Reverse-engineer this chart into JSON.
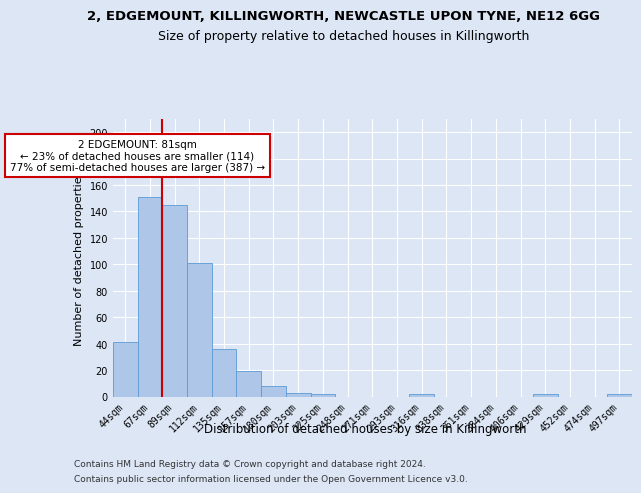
{
  "title1": "2, EDGEMOUNT, KILLINGWORTH, NEWCASTLE UPON TYNE, NE12 6GG",
  "title2": "Size of property relative to detached houses in Killingworth",
  "xlabel": "Distribution of detached houses by size in Killingworth",
  "ylabel": "Number of detached properties",
  "categories": [
    "44sqm",
    "67sqm",
    "89sqm",
    "112sqm",
    "135sqm",
    "157sqm",
    "180sqm",
    "203sqm",
    "225sqm",
    "248sqm",
    "271sqm",
    "293sqm",
    "316sqm",
    "338sqm",
    "361sqm",
    "384sqm",
    "406sqm",
    "429sqm",
    "452sqm",
    "474sqm",
    "497sqm"
  ],
  "values": [
    41,
    151,
    145,
    101,
    36,
    19,
    8,
    3,
    2,
    0,
    0,
    0,
    2,
    0,
    0,
    0,
    0,
    2,
    0,
    0,
    2
  ],
  "bar_color": "#aec6e8",
  "bar_edge_color": "#5b9bd5",
  "ylim": [
    0,
    210
  ],
  "yticks": [
    0,
    20,
    40,
    60,
    80,
    100,
    120,
    140,
    160,
    180,
    200
  ],
  "red_line_x": 1.5,
  "annotation_text": "2 EDGEMOUNT: 81sqm\n← 23% of detached houses are smaller (114)\n77% of semi-detached houses are larger (387) →",
  "annotation_box_color": "#ffffff",
  "annotation_box_edge": "#cc0000",
  "footer1": "Contains HM Land Registry data © Crown copyright and database right 2024.",
  "footer2": "Contains public sector information licensed under the Open Government Licence v3.0.",
  "bg_color": "#dce6f5",
  "plot_bg_color": "#dce6f5",
  "grid_color": "#ffffff",
  "title1_fontsize": 9.5,
  "title2_fontsize": 9,
  "tick_fontsize": 7,
  "ylabel_fontsize": 8,
  "xlabel_fontsize": 8.5
}
